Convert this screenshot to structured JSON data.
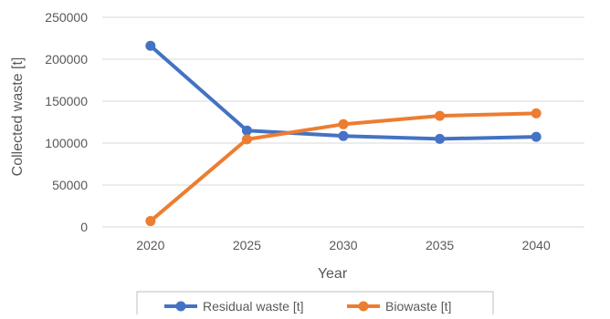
{
  "chart_data": {
    "type": "line",
    "title": "",
    "xlabel": "Year",
    "ylabel": "Collected waste [t]",
    "categories": [
      "2020",
      "2025",
      "2030",
      "2035",
      "2040"
    ],
    "ylim": [
      0,
      250000
    ],
    "yticks": [
      0,
      50000,
      100000,
      150000,
      200000,
      250000
    ],
    "grid": true,
    "legend_position": "bottom",
    "series": [
      {
        "name": "Residual waste [t]",
        "color": "#4472C4",
        "values": [
          216000,
          115000,
          108500,
          105000,
          107500
        ]
      },
      {
        "name": "Biowaste [t]",
        "color": "#ED7D31",
        "values": [
          7000,
          104500,
          122500,
          132500,
          135500
        ]
      }
    ]
  }
}
